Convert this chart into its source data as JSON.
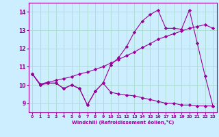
{
  "xlabel": "Windchill (Refroidissement éolien,°C)",
  "bg_color": "#cceeff",
  "line_color": "#990099",
  "grid_color": "#aaddcc",
  "xlim": [
    -0.5,
    23.5
  ],
  "ylim": [
    8.5,
    14.5
  ],
  "xticks": [
    0,
    1,
    2,
    3,
    4,
    5,
    6,
    7,
    8,
    9,
    10,
    11,
    12,
    13,
    14,
    15,
    16,
    17,
    18,
    19,
    20,
    21,
    22,
    23
  ],
  "yticks": [
    9,
    10,
    11,
    12,
    13,
    14
  ],
  "line1_x": [
    0,
    1,
    2,
    3,
    4,
    5,
    6,
    7,
    8,
    9,
    10,
    11,
    12,
    13,
    14,
    15,
    16,
    17,
    18,
    19,
    20,
    21,
    22,
    23
  ],
  "line1_y": [
    10.6,
    10.0,
    10.1,
    10.1,
    9.8,
    10.0,
    9.8,
    8.9,
    9.65,
    10.1,
    9.6,
    9.5,
    9.45,
    9.4,
    9.3,
    9.2,
    9.1,
    9.0,
    9.0,
    8.9,
    8.9,
    8.85,
    8.85,
    8.85
  ],
  "line2_x": [
    0,
    1,
    2,
    3,
    4,
    5,
    6,
    7,
    8,
    9,
    10,
    11,
    12,
    13,
    14,
    15,
    16,
    17,
    18,
    19,
    20,
    21,
    22,
    23
  ],
  "line2_y": [
    10.6,
    10.0,
    10.1,
    10.1,
    9.8,
    10.0,
    9.8,
    8.9,
    9.65,
    10.1,
    11.1,
    11.5,
    12.1,
    12.9,
    13.5,
    13.85,
    14.1,
    13.1,
    13.1,
    13.05,
    14.1,
    12.3,
    10.5,
    8.85
  ],
  "line3_x": [
    0,
    1,
    2,
    3,
    4,
    5,
    6,
    7,
    8,
    9,
    10,
    11,
    12,
    13,
    14,
    15,
    16,
    17,
    18,
    19,
    20,
    21,
    22,
    23
  ],
  "line3_y": [
    10.6,
    10.05,
    10.15,
    10.25,
    10.35,
    10.45,
    10.6,
    10.7,
    10.85,
    11.0,
    11.2,
    11.4,
    11.6,
    11.8,
    12.05,
    12.25,
    12.5,
    12.65,
    12.8,
    12.95,
    13.1,
    13.2,
    13.3,
    13.1
  ]
}
